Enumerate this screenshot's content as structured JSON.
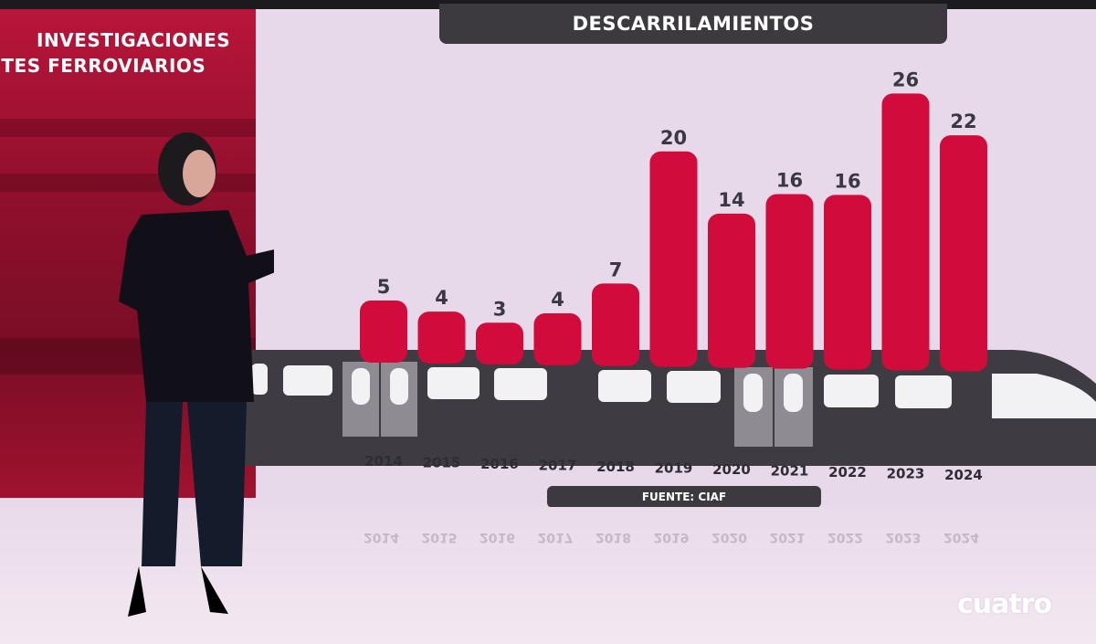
{
  "header": {
    "title": "DESCARRILAMIENTOS",
    "section_line1": "INVESTIGACIONES",
    "section_line2": "ENTES FERROVIARIOS"
  },
  "footer": {
    "source": "FUENTE: CIAF"
  },
  "logo": "cuatro",
  "colors": {
    "bar": "#d10b3b",
    "train_body": "#3e3b42",
    "title_bg": "#3c3a3f",
    "background": "#e9dbea"
  },
  "chart_data": {
    "type": "bar",
    "title": "DESCARRILAMIENTOS",
    "categories": [
      "2014",
      "2015",
      "2016",
      "2017",
      "2018",
      "2019",
      "2020",
      "2021",
      "2022",
      "2023",
      "2024"
    ],
    "values": [
      5,
      4,
      3,
      4,
      7,
      20,
      14,
      16,
      16,
      26,
      22
    ],
    "data_labels": true,
    "grid": false,
    "source": "FUENTE: CIAF"
  }
}
